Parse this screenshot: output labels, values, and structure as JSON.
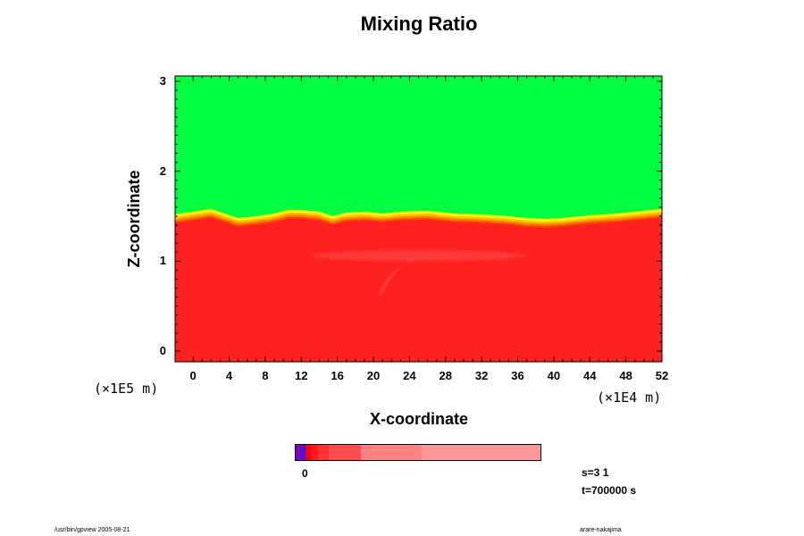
{
  "chart_data": {
    "type": "heatmap",
    "title": "Mixing Ratio",
    "xlabel": "X-coordinate",
    "ylabel": "Z-coordinate",
    "x_unit": "(×1E4 m)",
    "y_unit": "(×1E5 m)",
    "xlim": [
      -2,
      52
    ],
    "ylim": [
      -0.12,
      3.06
    ],
    "x_ticks": [
      "0",
      "4",
      "8",
      "12",
      "16",
      "20",
      "24",
      "28",
      "32",
      "36",
      "40",
      "44",
      "48",
      "52"
    ],
    "y_ticks": [
      "0",
      "1",
      "2",
      "3"
    ],
    "regions": {
      "upper_color": "#00ff40",
      "lower_color": "#ff2020",
      "transition_colors": [
        "#ffff00",
        "#ffc000",
        "#ff8000",
        "#ff4000"
      ],
      "inner_plume_color": "#ff4040"
    },
    "interface_profile": [
      {
        "x": -2,
        "z": 1.42
      },
      {
        "x": 0,
        "z": 1.45
      },
      {
        "x": 2,
        "z": 1.48
      },
      {
        "x": 3.5,
        "z": 1.43
      },
      {
        "x": 5,
        "z": 1.38
      },
      {
        "x": 7,
        "z": 1.4
      },
      {
        "x": 9,
        "z": 1.43
      },
      {
        "x": 10.5,
        "z": 1.47
      },
      {
        "x": 12,
        "z": 1.47
      },
      {
        "x": 14,
        "z": 1.45
      },
      {
        "x": 15.5,
        "z": 1.4
      },
      {
        "x": 17,
        "z": 1.44
      },
      {
        "x": 19,
        "z": 1.45
      },
      {
        "x": 21,
        "z": 1.43
      },
      {
        "x": 23,
        "z": 1.45
      },
      {
        "x": 26,
        "z": 1.46
      },
      {
        "x": 29,
        "z": 1.43
      },
      {
        "x": 32,
        "z": 1.42
      },
      {
        "x": 35,
        "z": 1.4
      },
      {
        "x": 37,
        "z": 1.38
      },
      {
        "x": 39,
        "z": 1.37
      },
      {
        "x": 41,
        "z": 1.38
      },
      {
        "x": 44,
        "z": 1.41
      },
      {
        "x": 47,
        "z": 1.43
      },
      {
        "x": 50,
        "z": 1.46
      },
      {
        "x": 52,
        "z": 1.48
      }
    ],
    "colorbar": {
      "tick_label": "0",
      "colors": [
        "#7f00bf",
        "#2020ff",
        "#ff0000",
        "#ff1a1a",
        "#ff3333",
        "#ff4d4d",
        "#ff8080",
        "#ff9999"
      ],
      "weights": [
        3,
        1,
        2,
        3,
        4,
        13,
        24,
        47
      ]
    }
  },
  "info": {
    "s": "s=3 1",
    "t": "t=700000 s"
  },
  "footer": {
    "left": "/usr/bin/gpview 2005-08-21",
    "right": "arare-nakajima"
  }
}
